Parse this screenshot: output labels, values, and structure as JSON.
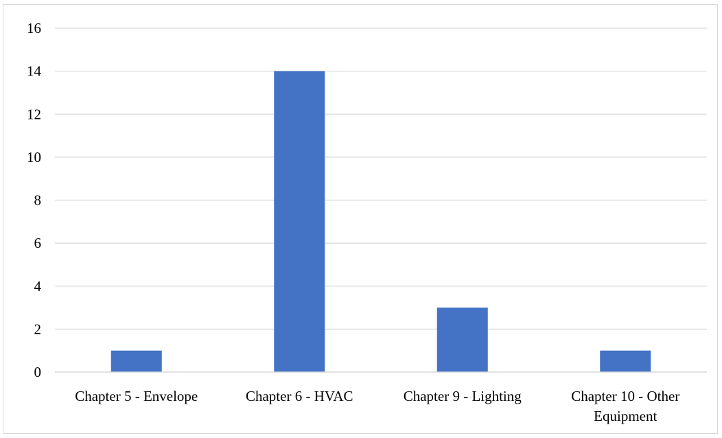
{
  "chart_data": {
    "type": "bar",
    "categories": [
      [
        "Chapter 5 - Envelope"
      ],
      [
        "Chapter 6 - HVAC"
      ],
      [
        "Chapter 9 - Lighting"
      ],
      [
        "Chapter 10 - Other",
        "Equipment"
      ]
    ],
    "values": [
      1,
      14,
      3,
      1
    ],
    "title": "",
    "xlabel": "",
    "ylabel": "",
    "ylim": [
      0,
      16
    ],
    "yticks": [
      0,
      2,
      4,
      6,
      8,
      10,
      12,
      14,
      16
    ],
    "grid": true,
    "legend": "none"
  },
  "colors": {
    "bar": "#4472c4",
    "grid": "#d9d9d9",
    "axis": "#d9d9d9",
    "text": "#000000"
  }
}
